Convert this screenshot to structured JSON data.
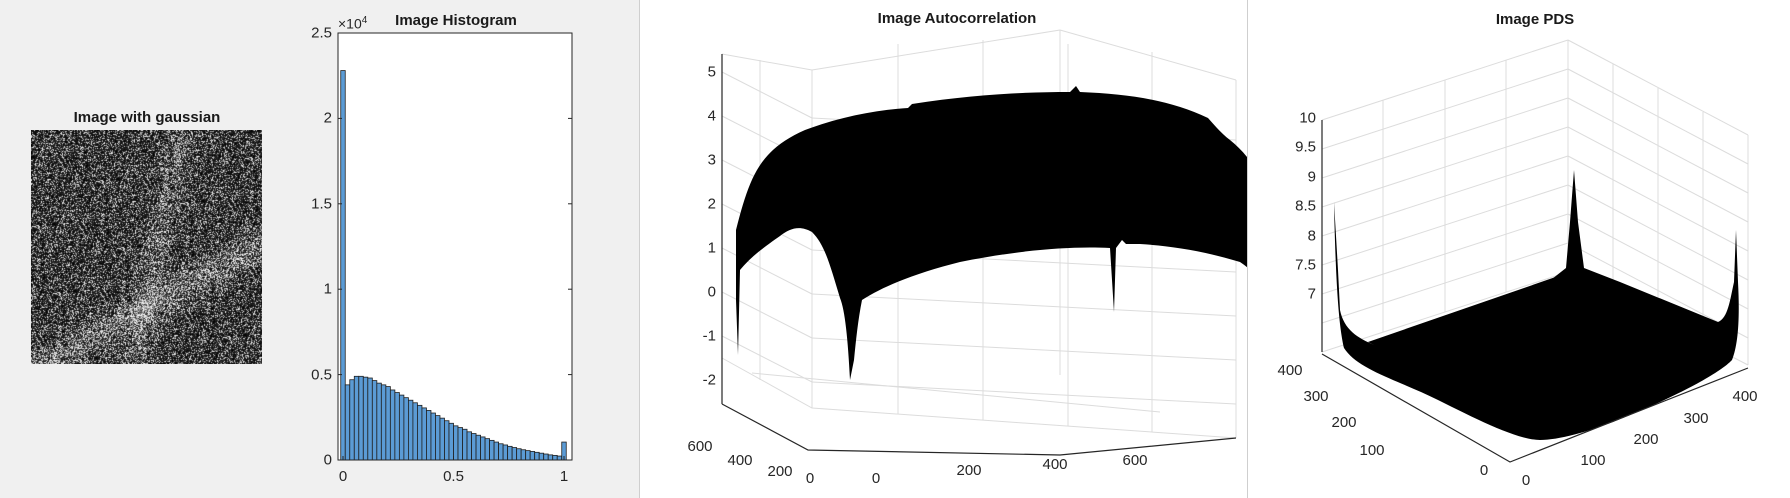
{
  "chart_data": [
    {
      "type": "image",
      "title": "Image with gaussian",
      "image": "grayscale-noise-image"
    },
    {
      "type": "bar",
      "title": "Image Histogram",
      "xlim": [
        0,
        1
      ],
      "ylim": [
        0,
        25000
      ],
      "xticks": [
        "0",
        "0.5",
        "1"
      ],
      "yticks": [
        "0",
        "0.5",
        "1",
        "1.5",
        "2",
        "2.5"
      ],
      "yexponent": "×10",
      "yexponent_power": "4",
      "bar_color": "#5b9bd5",
      "bins": 50,
      "values": [
        22800,
        4400,
        4700,
        4900,
        4900,
        4850,
        4800,
        4650,
        4500,
        4400,
        4300,
        4100,
        3950,
        3800,
        3650,
        3500,
        3350,
        3200,
        3050,
        2900,
        2750,
        2600,
        2450,
        2300,
        2150,
        2000,
        1900,
        1800,
        1650,
        1550,
        1450,
        1350,
        1250,
        1150,
        1050,
        950,
        880,
        800,
        730,
        660,
        600,
        550,
        500,
        450,
        400,
        350,
        300,
        270,
        230,
        1050
      ]
    },
    {
      "type": "surface",
      "title": "Image Autocorrelation",
      "zticks": [
        "5",
        "4",
        "3",
        "2",
        "1",
        "0",
        "-1",
        "-2"
      ],
      "yticks": [
        "600",
        "400",
        "200",
        "0"
      ],
      "xticks": [
        "0",
        "200",
        "400",
        "600"
      ],
      "grid": true
    },
    {
      "type": "surface",
      "title": "Image PDS",
      "zticks": [
        "10",
        "9.5",
        "9",
        "8.5",
        "8",
        "7.5",
        "7"
      ],
      "yticks": [
        "400",
        "300",
        "200",
        "100",
        "0"
      ],
      "xticks": [
        "0",
        "100",
        "200",
        "300",
        "400"
      ],
      "grid": true
    }
  ]
}
